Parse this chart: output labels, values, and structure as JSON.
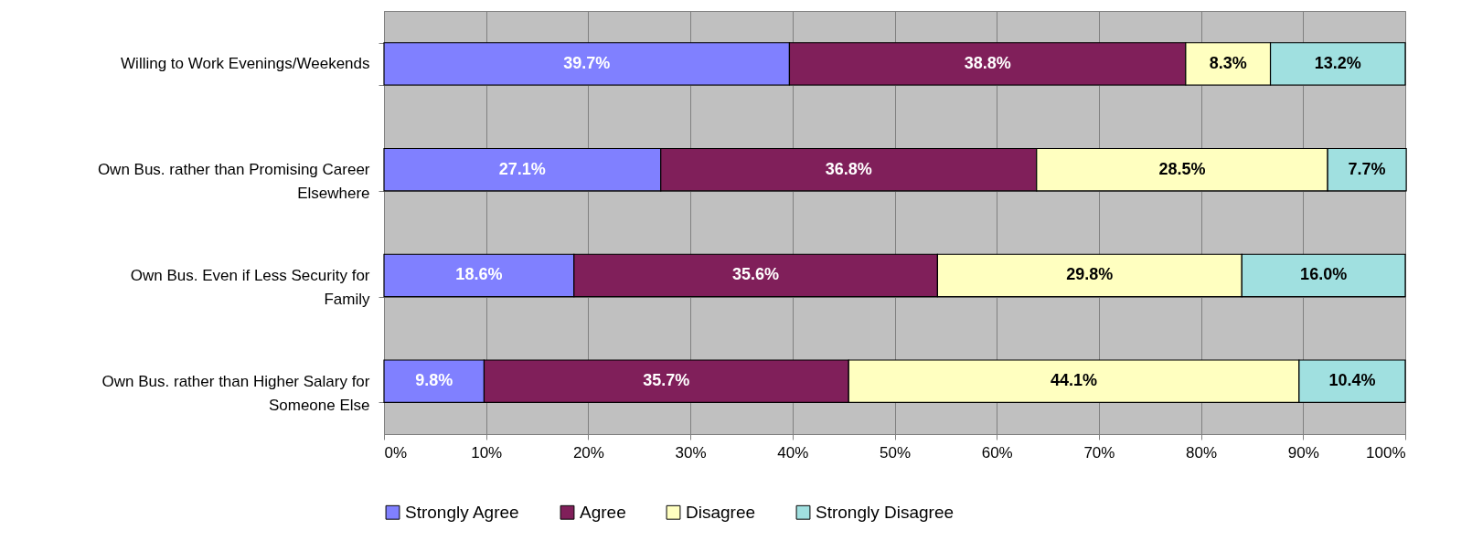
{
  "chart_data": {
    "type": "bar",
    "orientation": "horizontal",
    "stacked": true,
    "categories": [
      "Willing to Work Evenings/Weekends",
      "Own Bus. rather than Promising Career Elsewhere",
      "Own Bus. Even if Less Security for Family",
      "Own Bus. rather than Higher Salary for Someone Else"
    ],
    "series": [
      {
        "name": "Strongly Agree",
        "color": "#8080ff",
        "values": [
          39.7,
          27.1,
          18.6,
          9.8
        ],
        "value_labels": [
          "39.7%",
          "27.1%",
          "18.6%",
          "9.8%"
        ]
      },
      {
        "name": "Agree",
        "color": "#801f5a",
        "values": [
          38.8,
          36.8,
          35.6,
          35.7
        ],
        "value_labels": [
          "38.8%",
          "36.8%",
          "35.6%",
          "35.7%"
        ]
      },
      {
        "name": "Disagree",
        "color": "#ffffc0",
        "values": [
          8.3,
          28.5,
          29.8,
          44.1
        ],
        "value_labels": [
          "8.3%",
          "28.5%",
          "29.8%",
          "44.1%"
        ]
      },
      {
        "name": "Strongly Disagree",
        "color": "#a0e0e0",
        "values": [
          13.2,
          7.7,
          16.0,
          10.4
        ],
        "value_labels": [
          "13.2%",
          "7.7%",
          "16.0%",
          "10.4%"
        ]
      }
    ],
    "xlim": [
      0,
      100
    ],
    "xticks": [
      {
        "value": 0,
        "label": "0%"
      },
      {
        "value": 10,
        "label": "10%"
      },
      {
        "value": 20,
        "label": "20%"
      },
      {
        "value": 30,
        "label": "30%"
      },
      {
        "value": 40,
        "label": "40%"
      },
      {
        "value": 50,
        "label": "50%"
      },
      {
        "value": 60,
        "label": "60%"
      },
      {
        "value": 70,
        "label": "70%"
      },
      {
        "value": 80,
        "label": "80%"
      },
      {
        "value": 90,
        "label": "90%"
      },
      {
        "value": 100,
        "label": "100%"
      }
    ],
    "grid": true,
    "legend": "bottom"
  }
}
